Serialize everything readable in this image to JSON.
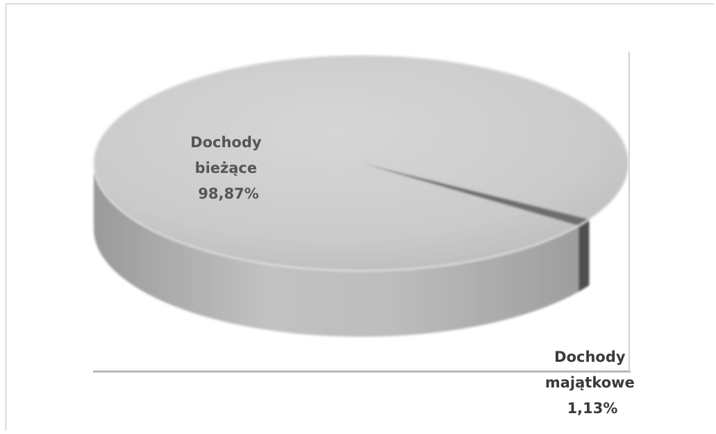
{
  "chart_data": {
    "type": "pie",
    "title": "",
    "slices": [
      {
        "label_lines": [
          "Dochody",
          "bieżące",
          "98,87%"
        ],
        "value": 98.87,
        "color": "#c4c4c4"
      },
      {
        "label_lines": [
          "Dochody",
          "majątkowe",
          "1,13%"
        ],
        "value": 1.13,
        "color": "#6e6e6e"
      }
    ],
    "three_d": true,
    "legend": "none"
  }
}
